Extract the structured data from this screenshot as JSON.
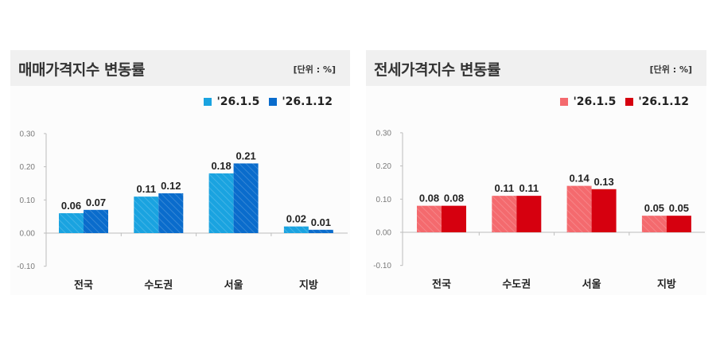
{
  "chart_data": [
    {
      "type": "bar",
      "title": "매매가격지수 변동률",
      "unit_label": "[단위 : %]",
      "xlabel": "",
      "ylabel": "",
      "categories": [
        "전국",
        "수도권",
        "서울",
        "지방"
      ],
      "series": [
        {
          "name": "'26.1.5",
          "values": [
            0.06,
            0.11,
            0.18,
            0.02
          ],
          "color": "#1aa3e0",
          "hatched": true
        },
        {
          "name": "'26.1.12",
          "values": [
            0.07,
            0.12,
            0.21,
            0.01
          ],
          "color": "#0a6ccc",
          "hatched": true
        }
      ],
      "ylim": [
        -0.1,
        0.3
      ],
      "yticks": [
        "0.30",
        "0.20",
        "0.10",
        "0.00",
        "-0.10"
      ],
      "grid": false,
      "legend_position": "top-right"
    },
    {
      "type": "bar",
      "title": "전세가격지수 변동률",
      "unit_label": "[단위 : %]",
      "xlabel": "",
      "ylabel": "",
      "categories": [
        "전국",
        "수도권",
        "서울",
        "지방"
      ],
      "series": [
        {
          "name": "'26.1.5",
          "values": [
            0.08,
            0.11,
            0.14,
            0.05
          ],
          "color": "#f46a6e",
          "hatched": true
        },
        {
          "name": "'26.1.12",
          "values": [
            0.08,
            0.11,
            0.13,
            0.05
          ],
          "color": "#d6000f",
          "hatched": false
        }
      ],
      "ylim": [
        -0.1,
        0.3
      ],
      "yticks": [
        "0.30",
        "0.20",
        "0.10",
        "0.00",
        "-0.10"
      ],
      "grid": false,
      "legend_position": "top-right"
    }
  ]
}
